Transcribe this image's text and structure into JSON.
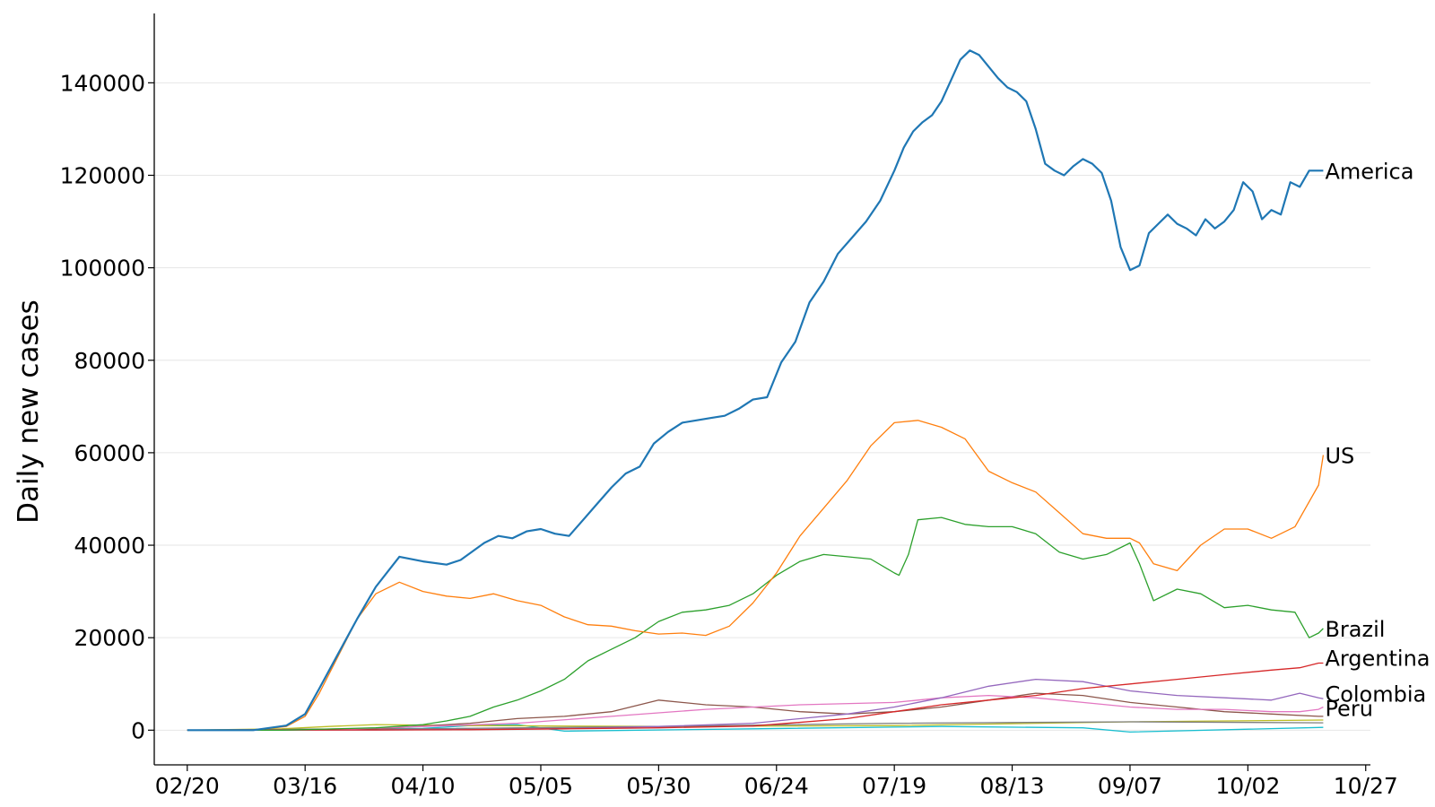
{
  "chart_data": {
    "type": "line",
    "title": "",
    "xlabel": "",
    "ylabel": "Daily new cases",
    "x_ticks": [
      "02/20",
      "03/16",
      "04/10",
      "05/05",
      "05/30",
      "06/24",
      "07/19",
      "08/13",
      "09/07",
      "10/02",
      "10/27"
    ],
    "y_ticks": [
      0,
      20000,
      40000,
      60000,
      80000,
      100000,
      120000,
      140000
    ],
    "ylim": [
      -7500,
      155000
    ],
    "xlim_day_offset": [
      -7,
      251
    ],
    "x_start_date": "02/20",
    "grid": "horizontal",
    "legend": "labels at series ends",
    "series": [
      {
        "name": "America",
        "color": "#1f77b4",
        "width": 2.2,
        "x": [
          0,
          14,
          21,
          25,
          28,
          32,
          36,
          40,
          45,
          50,
          55,
          58,
          63,
          66,
          69,
          72,
          75,
          78,
          81,
          84,
          87,
          90,
          93,
          96,
          99,
          102,
          105,
          108,
          111,
          114,
          117,
          120,
          123,
          126,
          129,
          132,
          135,
          138,
          141,
          144,
          147,
          150,
          152,
          154,
          156,
          158,
          160,
          162,
          164,
          166,
          168,
          170,
          172,
          174,
          176,
          178,
          180,
          182,
          184,
          186,
          188,
          190,
          192,
          194,
          196,
          198,
          200,
          202,
          204,
          206,
          208,
          210,
          212,
          214,
          216,
          218,
          220,
          222,
          224,
          226,
          228,
          230,
          232,
          234,
          236,
          238,
          240,
          241
        ],
        "y": [
          0,
          0,
          1000,
          3500,
          9000,
          16500,
          24000,
          31000,
          37500,
          36500,
          35800,
          36800,
          40500,
          42000,
          41500,
          43000,
          43500,
          42500,
          42000,
          45500,
          49000,
          52500,
          55500,
          57000,
          62000,
          64500,
          66500,
          67000,
          67500,
          68000,
          69500,
          71500,
          72000,
          79500,
          84000,
          92500,
          97000,
          103000,
          106500,
          110000,
          114500,
          121000,
          126000,
          129500,
          131500,
          133000,
          136000,
          140500,
          145000,
          147000,
          146000,
          143500,
          141000,
          139000,
          138000,
          136000,
          130000,
          122500,
          121000,
          120000,
          122000,
          123500,
          122500,
          120500,
          114500,
          104500,
          99500,
          100500,
          107500,
          109500,
          111500,
          109500,
          108500,
          107000,
          110500,
          108500,
          110000,
          112500,
          118500,
          116500,
          110500,
          112500,
          111500,
          118500,
          117500,
          121000,
          121000,
          121000
        ]
      },
      {
        "name": "US",
        "color": "#ff7f0e",
        "width": 1.3,
        "x": [
          0,
          14,
          21,
          25,
          28,
          32,
          36,
          40,
          45,
          50,
          55,
          60,
          65,
          70,
          75,
          80,
          85,
          90,
          95,
          100,
          105,
          110,
          115,
          120,
          125,
          130,
          135,
          140,
          145,
          150,
          155,
          160,
          165,
          170,
          175,
          180,
          185,
          190,
          195,
          200,
          202,
          205,
          210,
          215,
          220,
          225,
          230,
          235,
          240,
          241
        ],
        "y": [
          0,
          0,
          800,
          3000,
          8000,
          16000,
          24000,
          29500,
          32000,
          30000,
          29000,
          28500,
          29500,
          28000,
          27000,
          24500,
          22800,
          22500,
          21500,
          20800,
          21000,
          20500,
          22500,
          27500,
          34000,
          42000,
          48000,
          54000,
          61500,
          66500,
          67000,
          65500,
          63000,
          56000,
          53500,
          51500,
          47000,
          42500,
          41500,
          41500,
          40500,
          36000,
          34500,
          40000,
          43500,
          43500,
          41500,
          44000,
          53000,
          59500
        ]
      },
      {
        "name": "Brazil",
        "color": "#2ca02c",
        "width": 1.3,
        "x": [
          0,
          20,
          40,
          50,
          55,
          60,
          65,
          70,
          75,
          80,
          85,
          90,
          95,
          100,
          105,
          110,
          115,
          120,
          125,
          130,
          135,
          140,
          145,
          150,
          151,
          153,
          155,
          160,
          165,
          170,
          175,
          180,
          185,
          190,
          195,
          200,
          202,
          205,
          210,
          215,
          220,
          225,
          230,
          235,
          238,
          240,
          241
        ],
        "y": [
          0,
          0,
          500,
          1200,
          2000,
          3000,
          5000,
          6500,
          8500,
          11000,
          15000,
          17500,
          20000,
          23500,
          25500,
          26000,
          27000,
          29500,
          33500,
          36500,
          38000,
          37500,
          37000,
          34000,
          33500,
          38000,
          45500,
          46000,
          44500,
          44000,
          44000,
          42500,
          38500,
          37000,
          38000,
          40500,
          36000,
          28000,
          30500,
          29500,
          26500,
          27000,
          26000,
          25500,
          20000,
          21000,
          22000
        ]
      },
      {
        "name": "Argentina",
        "color": "#d62728",
        "width": 1.3,
        "x": [
          0,
          40,
          60,
          80,
          100,
          120,
          140,
          150,
          160,
          170,
          180,
          190,
          200,
          210,
          220,
          230,
          236,
          240,
          241
        ],
        "y": [
          0,
          50,
          100,
          300,
          500,
          900,
          2500,
          4000,
          5500,
          6500,
          7500,
          9000,
          10000,
          11000,
          12000,
          13000,
          13500,
          14500,
          14500
        ]
      },
      {
        "name": "Colombia",
        "color": "#9467bd",
        "width": 1.3,
        "x": [
          0,
          40,
          60,
          80,
          100,
          120,
          140,
          150,
          160,
          170,
          180,
          190,
          200,
          210,
          220,
          230,
          236,
          240,
          241
        ],
        "y": [
          0,
          50,
          150,
          350,
          800,
          1500,
          3500,
          5000,
          7000,
          9500,
          11000,
          10500,
          8500,
          7500,
          7000,
          6500,
          8000,
          7000,
          6800
        ]
      },
      {
        "name": "Peru",
        "color": "#e377c2",
        "width": 1.3,
        "x": [
          0,
          30,
          50,
          70,
          90,
          110,
          130,
          150,
          160,
          170,
          180,
          190,
          200,
          210,
          220,
          230,
          235,
          236,
          240,
          241
        ],
        "y": [
          0,
          100,
          800,
          1500,
          3000,
          4500,
          5500,
          6000,
          7000,
          7500,
          7000,
          6000,
          5000,
          4500,
          4500,
          4000,
          4000,
          4000,
          4500,
          5000
        ]
      },
      {
        "name": "",
        "color": "#8c564b",
        "width": 1.3,
        "x": [
          0,
          40,
          60,
          70,
          80,
          90,
          100,
          110,
          120,
          130,
          140,
          150,
          160,
          170,
          180,
          190,
          200,
          210,
          220,
          230,
          240,
          241
        ],
        "y": [
          0,
          300,
          1500,
          2500,
          3000,
          4000,
          6500,
          5500,
          5000,
          4000,
          3500,
          4000,
          5000,
          6500,
          8000,
          7500,
          6000,
          5000,
          4000,
          3500,
          3000,
          3000
        ]
      },
      {
        "name": "",
        "color": "#7f7f7f",
        "width": 1.3,
        "x": [
          0,
          50,
          100,
          150,
          200,
          241
        ],
        "y": [
          0,
          300,
          800,
          1500,
          1800,
          1600
        ]
      },
      {
        "name": "",
        "color": "#bcbd22",
        "width": 1.3,
        "x": [
          0,
          20,
          30,
          40,
          60,
          100,
          150,
          200,
          241
        ],
        "y": [
          0,
          300,
          800,
          1200,
          1000,
          800,
          1000,
          1800,
          2200
        ]
      },
      {
        "name": "",
        "color": "#17becf",
        "width": 1.3,
        "x": [
          0,
          50,
          60,
          70,
          80,
          120,
          160,
          190,
          200,
          241
        ],
        "y": [
          0,
          400,
          1000,
          1200,
          -200,
          300,
          800,
          500,
          -400,
          600
        ]
      }
    ],
    "annotations": [
      "America",
      "US",
      "Brazil",
      "Argentina",
      "Colombia",
      "Peru"
    ]
  }
}
